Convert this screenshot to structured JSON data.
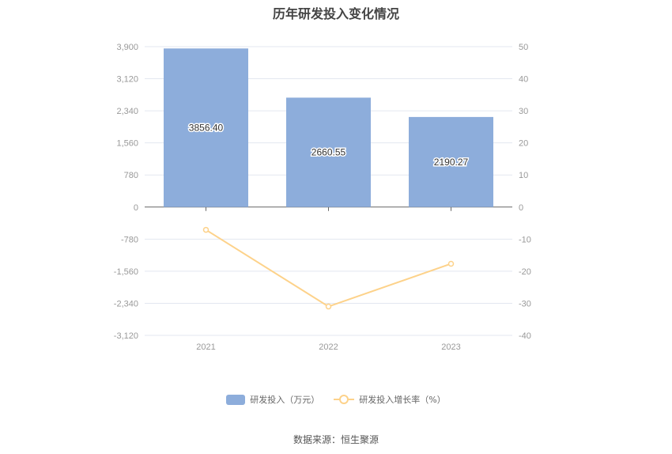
{
  "title": "历年研发投入变化情况",
  "legend": {
    "bar_label": "研发投入（万元）",
    "line_label": "研发投入增长率（%）"
  },
  "source": "数据来源：恒生聚源",
  "colors": {
    "bar": "#8daddb",
    "line": "#fdd28a",
    "grid": "#e3e7f0",
    "axis": "#666666",
    "tick_text": "#999999"
  },
  "chart_data": {
    "type": "bar+line",
    "title": "历年研发投入变化情况",
    "categories": [
      "2021",
      "2022",
      "2023"
    ],
    "series": [
      {
        "name": "研发投入（万元）",
        "type": "bar",
        "axis": "left",
        "values": [
          3856.4,
          2660.55,
          2190.27
        ],
        "labels": [
          "3856.40",
          "2660.55",
          "2190.27"
        ]
      },
      {
        "name": "研发投入增长率（%）",
        "type": "line",
        "axis": "right",
        "values": [
          -7.1,
          -31.01,
          -17.68
        ]
      }
    ],
    "left_axis": {
      "ticks": [
        "3,900",
        "3,120",
        "2,340",
        "1,560",
        "780",
        "0",
        "-780",
        "-1,560",
        "-2,340",
        "-3,120"
      ],
      "ylim": [
        -3120,
        3900
      ]
    },
    "right_axis": {
      "ticks": [
        "50",
        "40",
        "30",
        "20",
        "10",
        "0",
        "-10",
        "-20",
        "-30",
        "-40"
      ],
      "ylim": [
        -40,
        50
      ]
    },
    "grid": true,
    "legend_position": "bottom"
  }
}
